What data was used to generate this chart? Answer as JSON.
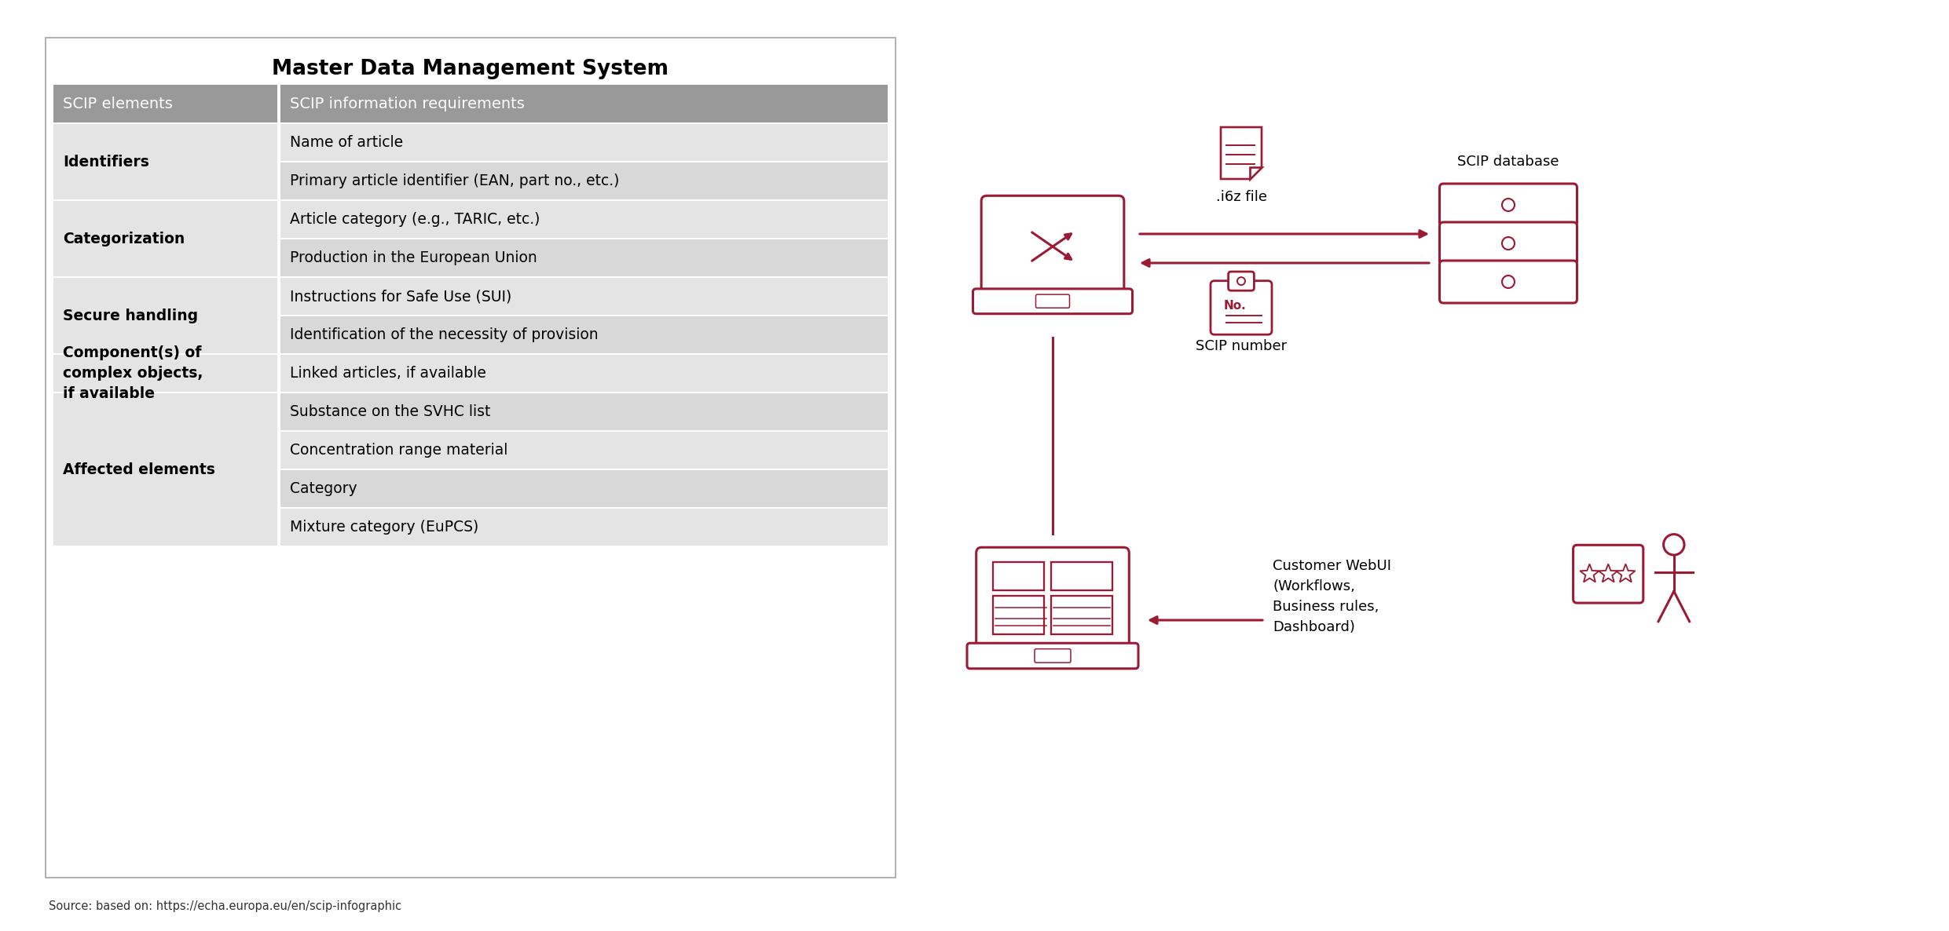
{
  "title": "Master Data Management System",
  "source_text": "Source: based on: https://echa.europa.eu/en/scip-infographic",
  "header_col1": "SCIP elements",
  "header_col2": "SCIP information requirements",
  "header_bg": "#999999",
  "header_fg": "#ffffff",
  "row_bg_a": "#e4e4e4",
  "row_bg_b": "#d8d8d8",
  "accent_color": "#9b1b34",
  "bg_color": "#ffffff",
  "table_rows": [
    {
      "col1": "Identifiers",
      "col2": [
        "Name of article",
        "Primary article identifier (EAN, part no., etc.)"
      ]
    },
    {
      "col1": "Categorization",
      "col2": [
        "Article category (e.g., TARIC, etc.)",
        "Production in the European Union"
      ]
    },
    {
      "col1": "Secure handling",
      "col2": [
        "Instructions for Safe Use (SUI)",
        "Identification of the necessity of provision"
      ]
    },
    {
      "col1": "Component(s) of\ncomplex objects,\nif available",
      "col2": [
        "Linked articles, if available"
      ]
    },
    {
      "col1": "Affected elements",
      "col2": [
        "Substance on the SVHC list",
        "Concentration range material",
        "Category",
        "Mixture category (EuPCS)"
      ]
    }
  ],
  "label_i6z": ".i6z file",
  "label_scip_num": "SCIP number",
  "label_scip_db": "SCIP database",
  "label_webui": "Customer WebUI\n(Workflows,\nBusiness rules,\nDashboard)"
}
